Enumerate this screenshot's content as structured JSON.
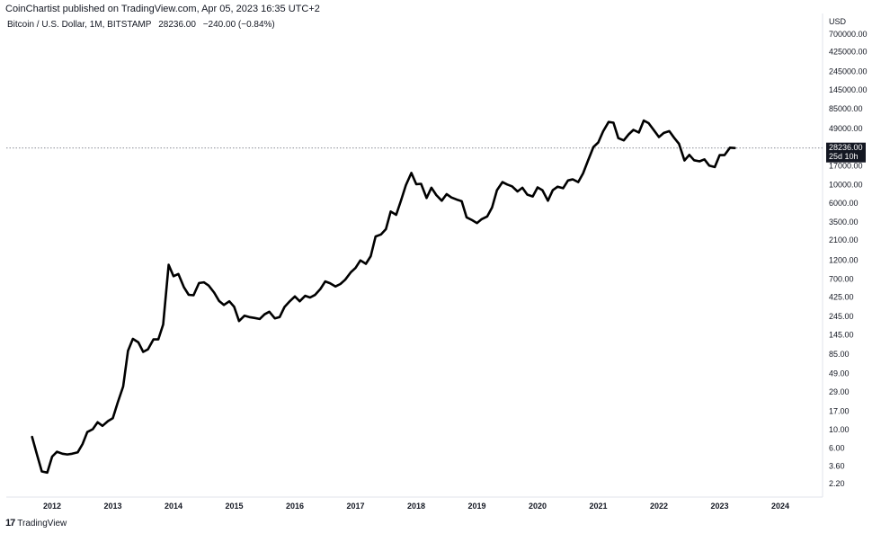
{
  "header": {
    "published": "CoinChartist published on TradingView.com, Apr 05, 2023 16:35 UTC+2"
  },
  "symbol": {
    "name": "Bitcoin / U.S. Dollar, 1M, BITSTAMP",
    "last": "28236.00",
    "change": "−240.00 (−0.84%)"
  },
  "footer": {
    "brand": "TradingView"
  },
  "price_badge": {
    "price": "28236.00",
    "countdown": "25d 10h"
  },
  "chart_data": {
    "type": "line",
    "scale": "log",
    "currency_label": "USD",
    "y_ticks": [
      700000,
      425000,
      245000,
      145000,
      85000,
      49000,
      28236,
      17000,
      10000,
      6000,
      3500,
      2100,
      1200,
      700,
      425,
      245,
      145,
      85,
      49,
      29,
      17,
      10,
      6,
      3.6,
      2.2
    ],
    "y_tick_labels": [
      "700000.00",
      "425000.00",
      "245000.00",
      "145000.00",
      "85000.00",
      "49000.00",
      "28236.00",
      "17000.00",
      "10000.00",
      "6000.00",
      "3500.00",
      "2100.00",
      "1200.00",
      "700.00",
      "425.00",
      "245.00",
      "145.00",
      "85.00",
      "49.00",
      "29.00",
      "17.00",
      "10.00",
      "6.00",
      "3.60",
      "2.20"
    ],
    "x_ticks": [
      "2012",
      "2013",
      "2014",
      "2015",
      "2016",
      "2017",
      "2018",
      "2019",
      "2020",
      "2021",
      "2022",
      "2023",
      "2024"
    ],
    "last_price": 28236,
    "series": [
      {
        "x": [
          2011.67,
          2011.75,
          2011.83,
          2011.92,
          2012.0,
          2012.08,
          2012.17,
          2012.25,
          2012.33,
          2012.42,
          2012.5,
          2012.58,
          2012.67,
          2012.75,
          2012.83,
          2012.92,
          2013.0,
          2013.08,
          2013.17,
          2013.25,
          2013.33,
          2013.42,
          2013.5,
          2013.58,
          2013.67,
          2013.75,
          2013.83,
          2013.92,
          2014.0,
          2014.08,
          2014.17,
          2014.25,
          2014.33,
          2014.42,
          2014.5,
          2014.58,
          2014.67,
          2014.75,
          2014.83,
          2014.92,
          2015.0,
          2015.08,
          2015.17,
          2015.25,
          2015.33,
          2015.42,
          2015.5,
          2015.58,
          2015.67,
          2015.75,
          2015.83,
          2015.92,
          2016.0,
          2016.08,
          2016.17,
          2016.25,
          2016.33,
          2016.42,
          2016.5,
          2016.58,
          2016.67,
          2016.75,
          2016.83,
          2016.92,
          2017.0,
          2017.08,
          2017.17,
          2017.25,
          2017.33,
          2017.42,
          2017.5,
          2017.58,
          2017.67,
          2017.75,
          2017.83,
          2017.92,
          2018.0,
          2018.08,
          2018.17,
          2018.25,
          2018.33,
          2018.42,
          2018.5,
          2018.58,
          2018.67,
          2018.75,
          2018.83,
          2018.92,
          2019.0,
          2019.08,
          2019.17,
          2019.25,
          2019.33,
          2019.42,
          2019.5,
          2019.58,
          2019.67,
          2019.75,
          2019.83,
          2019.92,
          2020.0,
          2020.08,
          2020.17,
          2020.25,
          2020.33,
          2020.42,
          2020.5,
          2020.58,
          2020.67,
          2020.75,
          2020.83,
          2020.92,
          2021.0,
          2021.08,
          2021.17,
          2021.25,
          2021.33,
          2021.42,
          2021.5,
          2021.58,
          2021.67,
          2021.75,
          2021.83,
          2021.92,
          2022.0,
          2022.08,
          2022.17,
          2022.25,
          2022.33,
          2022.42,
          2022.5,
          2022.58,
          2022.67,
          2022.75,
          2022.83,
          2022.92,
          2023.0,
          2023.08,
          2023.17,
          2023.25
        ],
        "values": [
          8.2,
          5.0,
          3.1,
          3.0,
          4.7,
          5.4,
          5.1,
          5.0,
          5.1,
          5.3,
          6.7,
          9.4,
          10.2,
          12.4,
          11.2,
          12.8,
          13.9,
          21.5,
          34.0,
          93,
          130,
          118,
          90,
          97,
          128,
          128,
          195,
          1050,
          760,
          810,
          560,
          450,
          445,
          628,
          640,
          585,
          480,
          380,
          338,
          375,
          321,
          215,
          250,
          240,
          235,
          228,
          260,
          280,
          232,
          241,
          320,
          378,
          430,
          375,
          438,
          417,
          448,
          531,
          657,
          625,
          570,
          610,
          690,
          847,
          960,
          1190,
          1080,
          1340,
          2330,
          2470,
          2870,
          4720,
          4300,
          6450,
          9920,
          14000,
          10200,
          10300,
          6900,
          9240,
          7500,
          6400,
          7700,
          7000,
          6600,
          6300,
          4000,
          3700,
          3400,
          3800,
          4100,
          5300,
          8600,
          10800,
          10100,
          9600,
          8300,
          9200,
          7600,
          7200,
          9300,
          8600,
          6400,
          8600,
          9500,
          9100,
          11300,
          11700,
          10800,
          13800,
          19700,
          29000,
          33000,
          45200,
          58800,
          57700,
          37300,
          35000,
          41500,
          47100,
          43800,
          61300,
          57000,
          46300,
          38500,
          43200,
          45500,
          37700,
          31800,
          19900,
          23300,
          20000,
          19400,
          20500,
          17200,
          16500,
          23100,
          23100,
          28500,
          28236
        ]
      }
    ]
  }
}
